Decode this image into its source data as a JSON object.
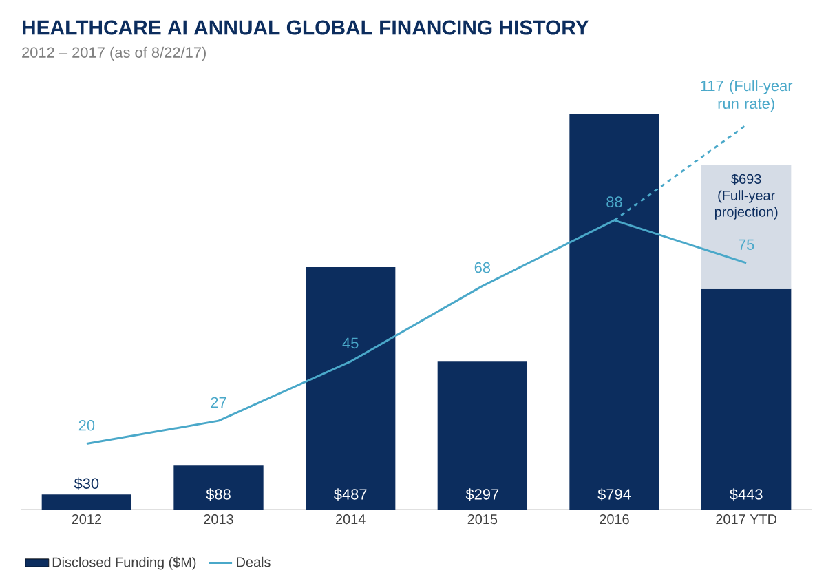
{
  "chart_data": {
    "type": "bar",
    "title": "HEALTHCARE AI ANNUAL GLOBAL FINANCING HISTORY",
    "subtitle": "2012 – 2017 (as of 8/22/17)",
    "categories": [
      "2012",
      "2013",
      "2014",
      "2015",
      "2016",
      "2017 YTD"
    ],
    "stacked": true,
    "series": [
      {
        "name": "Disclosed Funding ($M)",
        "color": "#0c2d5e",
        "values": [
          30,
          88,
          487,
          297,
          794,
          443
        ],
        "value_labels": [
          "$30",
          "$88",
          "$487",
          "$297",
          "$794",
          "$443"
        ]
      },
      {
        "color": "#d5dce6",
        "values": [
          null,
          null,
          null,
          null,
          null,
          250
        ]
      },
      {
        "name": "Deals",
        "type": "line",
        "axis": "y2",
        "color": "#4aa8c9",
        "values": [
          20,
          27,
          45,
          68,
          88,
          75
        ],
        "value_labels": [
          "20",
          "27",
          "45",
          "68",
          "88",
          "75"
        ]
      },
      {
        "type": "line",
        "axis": "y2",
        "color": "#4aa8c9",
        "line_style": "dashed",
        "values": [
          null,
          null,
          null,
          null,
          88,
          117
        ],
        "value_labels": [
          null,
          null,
          null,
          null,
          null,
          "117 (Full-year run rate)"
        ]
      }
    ],
    "annotations": [
      {
        "text": "$693 (Full-year projection)",
        "x": "2017 YTD",
        "y": 693
      }
    ],
    "legend": "bottom left",
    "tick_labels": "x",
    "marker": "none"
  }
}
